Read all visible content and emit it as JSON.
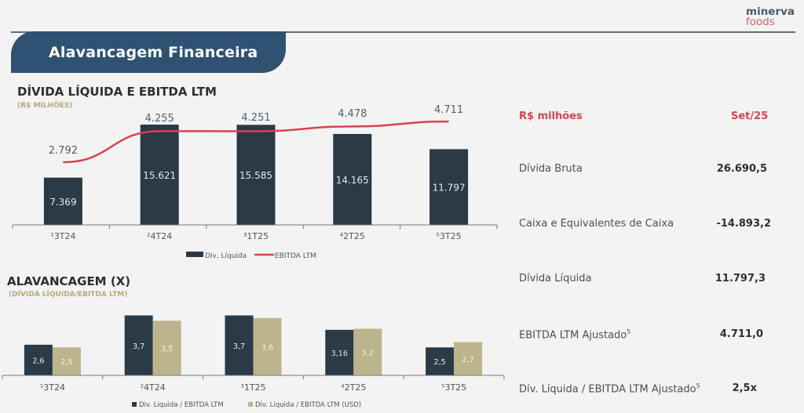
{
  "header": {
    "title": "Alavancagem Financeira",
    "logo_line1": "minerva",
    "logo_line2": "foods"
  },
  "colors": {
    "navy": "#2a3a47",
    "red": "#d9434f",
    "gold": "#bcb48c",
    "banner": "#2f5272"
  },
  "chart_data": [
    {
      "type": "bar",
      "title": "DÍVIDA LÍQUIDA E EBITDA LTM",
      "subtitle": "(R$ MILHÕES)",
      "categories": [
        "¹3T24",
        "²4T24",
        "³1T25",
        "⁴2T25",
        "⁵3T25"
      ],
      "series": [
        {
          "name": "Div, Líquida",
          "type": "bar",
          "values": [
            7369,
            15621,
            15585,
            14165,
            11797
          ],
          "labels": [
            "7.369",
            "15.621",
            "15.585",
            "14.165",
            "11.797"
          ]
        },
        {
          "name": "EBITDA LTM",
          "type": "line",
          "values": [
            2792,
            4255,
            4251,
            4478,
            4711
          ],
          "labels": [
            "2.792",
            "4.255",
            "4.251",
            "4.478",
            "4.711"
          ]
        }
      ],
      "legend": "bottom",
      "grid": false
    },
    {
      "type": "bar",
      "title": "ALAVANCAGEM (X)",
      "subtitle": "(DÍVIDA LÍQUIDA/EBITDA LTM)",
      "categories": [
        "¹3T24",
        "²4T24",
        "³1T25",
        "⁴2T25",
        "⁵3T25"
      ],
      "series": [
        {
          "name": "Div. Liquida / EBITDA LTM",
          "values": [
            2.6,
            3.7,
            3.7,
            3.16,
            2.5
          ],
          "labels": [
            "2,6",
            "3,7",
            "3,7",
            "3,16",
            "2,5"
          ]
        },
        {
          "name": "Div. Liquida / EBITDA LTM (USD)",
          "values": [
            2.5,
            3.5,
            3.6,
            3.2,
            2.7
          ],
          "labels": [
            "2,5",
            "3,5",
            "3,6",
            "3,2",
            "2,7"
          ]
        }
      ],
      "legend": "bottom",
      "grid": false
    }
  ],
  "table": {
    "header_label": "R$ milhões",
    "header_period": "Set/25",
    "rows": [
      {
        "label": "Dívida Bruta",
        "sup": "",
        "value": "26.690,5"
      },
      {
        "label": "Caixa e Equivalentes de Caixa",
        "sup": "",
        "value": "-14.893,2"
      },
      {
        "label": "Dívida Líquida",
        "sup": "",
        "value": "11.797,3"
      },
      {
        "label": "EBITDA LTM Ajustado",
        "sup": "5",
        "value": "4.711,0"
      },
      {
        "label": "Dív. Líquida / EBITDA LTM Ajustado",
        "sup": "5",
        "value": "2,5x"
      }
    ]
  }
}
